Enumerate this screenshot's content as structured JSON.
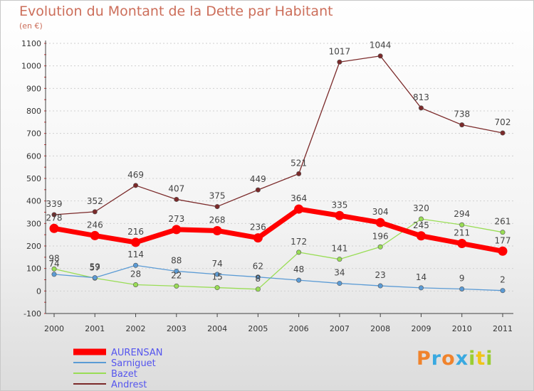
{
  "title": "Evolution du Montant de la Dette par Habitant",
  "subtitle": "(en €)",
  "logo": {
    "text": "Proxiti",
    "colors": [
      "#f0832c",
      "#39a9e0",
      "#f0832c",
      "#39a9e0",
      "#9acd32",
      "#f0c419",
      "#9acd32"
    ]
  },
  "chart_data": {
    "type": "line",
    "title": "Evolution du Montant de la Dette par Habitant",
    "subtitle": "(en €)",
    "xlabel": "",
    "ylabel": "",
    "x": [
      "2000",
      "2001",
      "2002",
      "2003",
      "2004",
      "2005",
      "2006",
      "2007",
      "2008",
      "2009",
      "2010",
      "2011"
    ],
    "ylim": [
      -100,
      1100
    ],
    "yticks": [
      -100,
      0,
      100,
      200,
      300,
      400,
      500,
      600,
      700,
      800,
      900,
      1000,
      1100
    ],
    "grid": "horizontal",
    "legend_position": "bottom-left",
    "series": [
      {
        "name": "AURENSAN",
        "color": "#ff0000",
        "values": [
          278,
          246,
          216,
          273,
          268,
          236,
          364,
          335,
          304,
          245,
          211,
          177
        ]
      },
      {
        "name": "Sarniguet",
        "color": "#5b9bd5",
        "values": [
          74,
          59,
          114,
          88,
          74,
          62,
          48,
          34,
          23,
          14,
          9,
          2
        ]
      },
      {
        "name": "Bazet",
        "color": "#99dd55",
        "values": [
          98,
          57,
          28,
          22,
          15,
          8,
          172,
          141,
          196,
          320,
          294,
          261
        ]
      },
      {
        "name": "Andrest",
        "color": "#7b2a2a",
        "values": [
          339,
          352,
          469,
          407,
          375,
          449,
          521,
          1017,
          1044,
          813,
          738,
          702
        ]
      }
    ]
  }
}
